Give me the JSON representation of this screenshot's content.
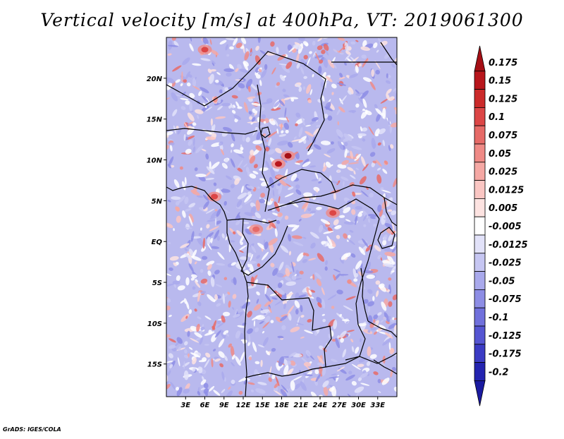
{
  "title": "Vertical velocity [m/s] at 400hPa, VT: 2019061300",
  "credit": "GrADS: IGES/COLA",
  "map": {
    "lon_range": [
      0,
      36
    ],
    "lat_range": [
      -19,
      25
    ],
    "x_ticks": [
      {
        "value": 3,
        "label": "3E"
      },
      {
        "value": 6,
        "label": "6E"
      },
      {
        "value": 9,
        "label": "9E"
      },
      {
        "value": 12,
        "label": "12E"
      },
      {
        "value": 15,
        "label": "15E"
      },
      {
        "value": 18,
        "label": "18E"
      },
      {
        "value": 21,
        "label": "21E"
      },
      {
        "value": 24,
        "label": "24E"
      },
      {
        "value": 27,
        "label": "27E"
      },
      {
        "value": 30,
        "label": "30E"
      },
      {
        "value": 33,
        "label": "33E"
      }
    ],
    "y_ticks": [
      {
        "value": 20,
        "label": "20N"
      },
      {
        "value": 15,
        "label": "15N"
      },
      {
        "value": 10,
        "label": "10N"
      },
      {
        "value": 5,
        "label": "5N"
      },
      {
        "value": 0,
        "label": "EQ"
      },
      {
        "value": -5,
        "label": "5S"
      },
      {
        "value": -10,
        "label": "10S"
      },
      {
        "value": -15,
        "label": "15S"
      }
    ],
    "updraft_cores": [
      {
        "lon": 17.5,
        "lat": 9.5,
        "strength": 0.15
      },
      {
        "lon": 19.0,
        "lat": 10.5,
        "strength": 0.175
      },
      {
        "lon": 7.5,
        "lat": 5.5,
        "strength": 0.1
      },
      {
        "lon": 26.0,
        "lat": 3.5,
        "strength": 0.1
      },
      {
        "lon": 6.0,
        "lat": 23.5,
        "strength": 0.1
      },
      {
        "lon": 14.0,
        "lat": 1.5,
        "strength": 0.075
      }
    ]
  },
  "colorbar": {
    "levels": [
      {
        "label": "0.175",
        "color": "#a50f15"
      },
      {
        "label": "0.15",
        "color": "#b8161c"
      },
      {
        "label": "0.125",
        "color": "#cb2a2a"
      },
      {
        "label": "0.1",
        "color": "#dc4646"
      },
      {
        "label": "0.075",
        "color": "#e66a67"
      },
      {
        "label": "0.05",
        "color": "#ef8a86"
      },
      {
        "label": "0.025",
        "color": "#f5a8a4"
      },
      {
        "label": "0.0125",
        "color": "#fac6c3"
      },
      {
        "label": "0.005",
        "color": "#fde3e1"
      },
      {
        "label": "-0.005",
        "color": "#ffffff"
      },
      {
        "label": "-0.0125",
        "color": "#e2e2f9"
      },
      {
        "label": "-0.025",
        "color": "#c6c6f2"
      },
      {
        "label": "-0.05",
        "color": "#a9a9ec"
      },
      {
        "label": "-0.075",
        "color": "#8d8de5"
      },
      {
        "label": "-0.1",
        "color": "#7070dc"
      },
      {
        "label": "-0.125",
        "color": "#5555d2"
      },
      {
        "label": "-0.175",
        "color": "#3b3bc4"
      },
      {
        "label": "-0.2",
        "color": "#2424b0"
      }
    ],
    "bottom_color": "#1a1aa0",
    "top_color": "#a50f15"
  }
}
